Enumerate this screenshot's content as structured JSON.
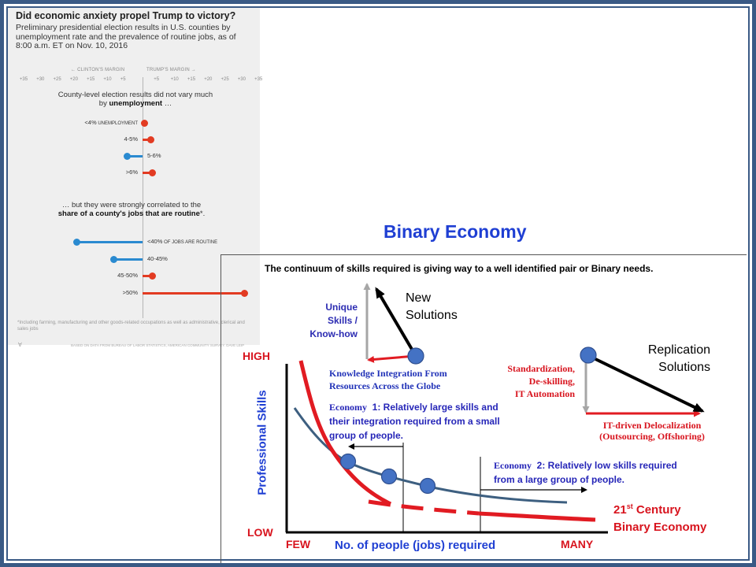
{
  "infographic": {
    "title": "Did economic anxiety propel Trump to victory?",
    "subtitle": "Preliminary presidential election results in U.S. counties by unemployment rate and the prevalence of routine jobs, as of 8:00 a.m. ET on Nov. 10, 2016",
    "clinton_margin_label": "← CLINTON'S MARGIN",
    "trump_margin_label": "TRUMP'S MARGIN →",
    "axis_ticks": [
      "+35",
      "+30",
      "+25",
      "+20",
      "+15",
      "+10",
      "+5",
      "+5",
      "+10",
      "+15",
      "+20",
      "+25",
      "+30",
      "+35"
    ],
    "section1_heading_pre": "County-level election results did not vary much by",
    "section1_heading_bold": "unemployment",
    "section1_heading_post": "…",
    "unemployment_rows": [
      {
        "label": "<4%",
        "suffix": "UNEMPLOYMENT",
        "margin": 0.5,
        "color": "#e23b22"
      },
      {
        "label": "4-5%",
        "suffix": "",
        "margin": 2.5,
        "color": "#e23b22"
      },
      {
        "label": "5-6%",
        "suffix": "",
        "margin": -4.5,
        "color": "#2a8ad0"
      },
      {
        "label": ">6%",
        "suffix": "",
        "margin": 3.0,
        "color": "#e23b22"
      }
    ],
    "section2_heading_pre": "… but they were strongly correlated to the",
    "section2_heading_bold": "share of a county's jobs that are routine",
    "section2_heading_post": "*.",
    "routine_rows": [
      {
        "label": "<40%",
        "suffix": "OF JOBS ARE ROUTINE",
        "margin": -19.5,
        "color": "#2a8ad0"
      },
      {
        "label": "40-45%",
        "suffix": "",
        "margin": -8.5,
        "color": "#2a8ad0"
      },
      {
        "label": "45-50%",
        "suffix": "",
        "margin": 3.0,
        "color": "#e23b22"
      },
      {
        "label": ">50%",
        "suffix": "",
        "margin": 30.5,
        "color": "#e23b22"
      }
    ],
    "footnote": "*Including farming, manufacturing and other goods-related occupations as well as administrative, clerical and sales jobs",
    "logo": "∀",
    "source": "BASED ON DATA FROM BUREAU OF LABOR STATISTICS, AMERICAN COMMUNITY SURVEY. DAVE LEIP"
  },
  "diagram": {
    "title": "Binary Economy",
    "subtitle": "The continuum of skills required is giving way to a well identified pair or Binary needs.",
    "unique_skills": [
      "Unique",
      "Skills /",
      "Know-how"
    ],
    "new_solutions": [
      "New",
      "Solutions"
    ],
    "knowledge_integration": [
      "Knowledge Integration From",
      "Resources Across the Globe"
    ],
    "standardization": [
      "Standardization,",
      "De-skilling,",
      "IT Automation"
    ],
    "replication_solutions": [
      "Replication",
      "Solutions"
    ],
    "delocalization": [
      "IT-driven Delocalization",
      "(Outsourcing, Offshoring)"
    ],
    "economy1_prefix": "Economy",
    "economy1_lines": [
      "1: Relatively large skills and",
      "their integration required from a small",
      "group of people."
    ],
    "economy2_prefix": "Economy",
    "economy2_lines": [
      "2: Relatively low skills required",
      "from a large group of people."
    ],
    "y_axis_label": "Professional Skills",
    "y_high": "HIGH",
    "y_low": "LOW",
    "x_axis_label": "No. of people (jobs) required",
    "x_few": "FEW",
    "x_many": "MANY",
    "century_num": "21",
    "century_sup": "st",
    "century_rest": "Century",
    "binary_economy": "Binary Economy"
  },
  "colors": {
    "frame": "#3a5a85",
    "title_blue": "#1f3fd3",
    "red": "#e11b22",
    "curve_blue": "#3d5f80",
    "dot_blue": "#4472c4",
    "trump_red": "#e23b22",
    "clinton_blue": "#2a8ad0"
  }
}
